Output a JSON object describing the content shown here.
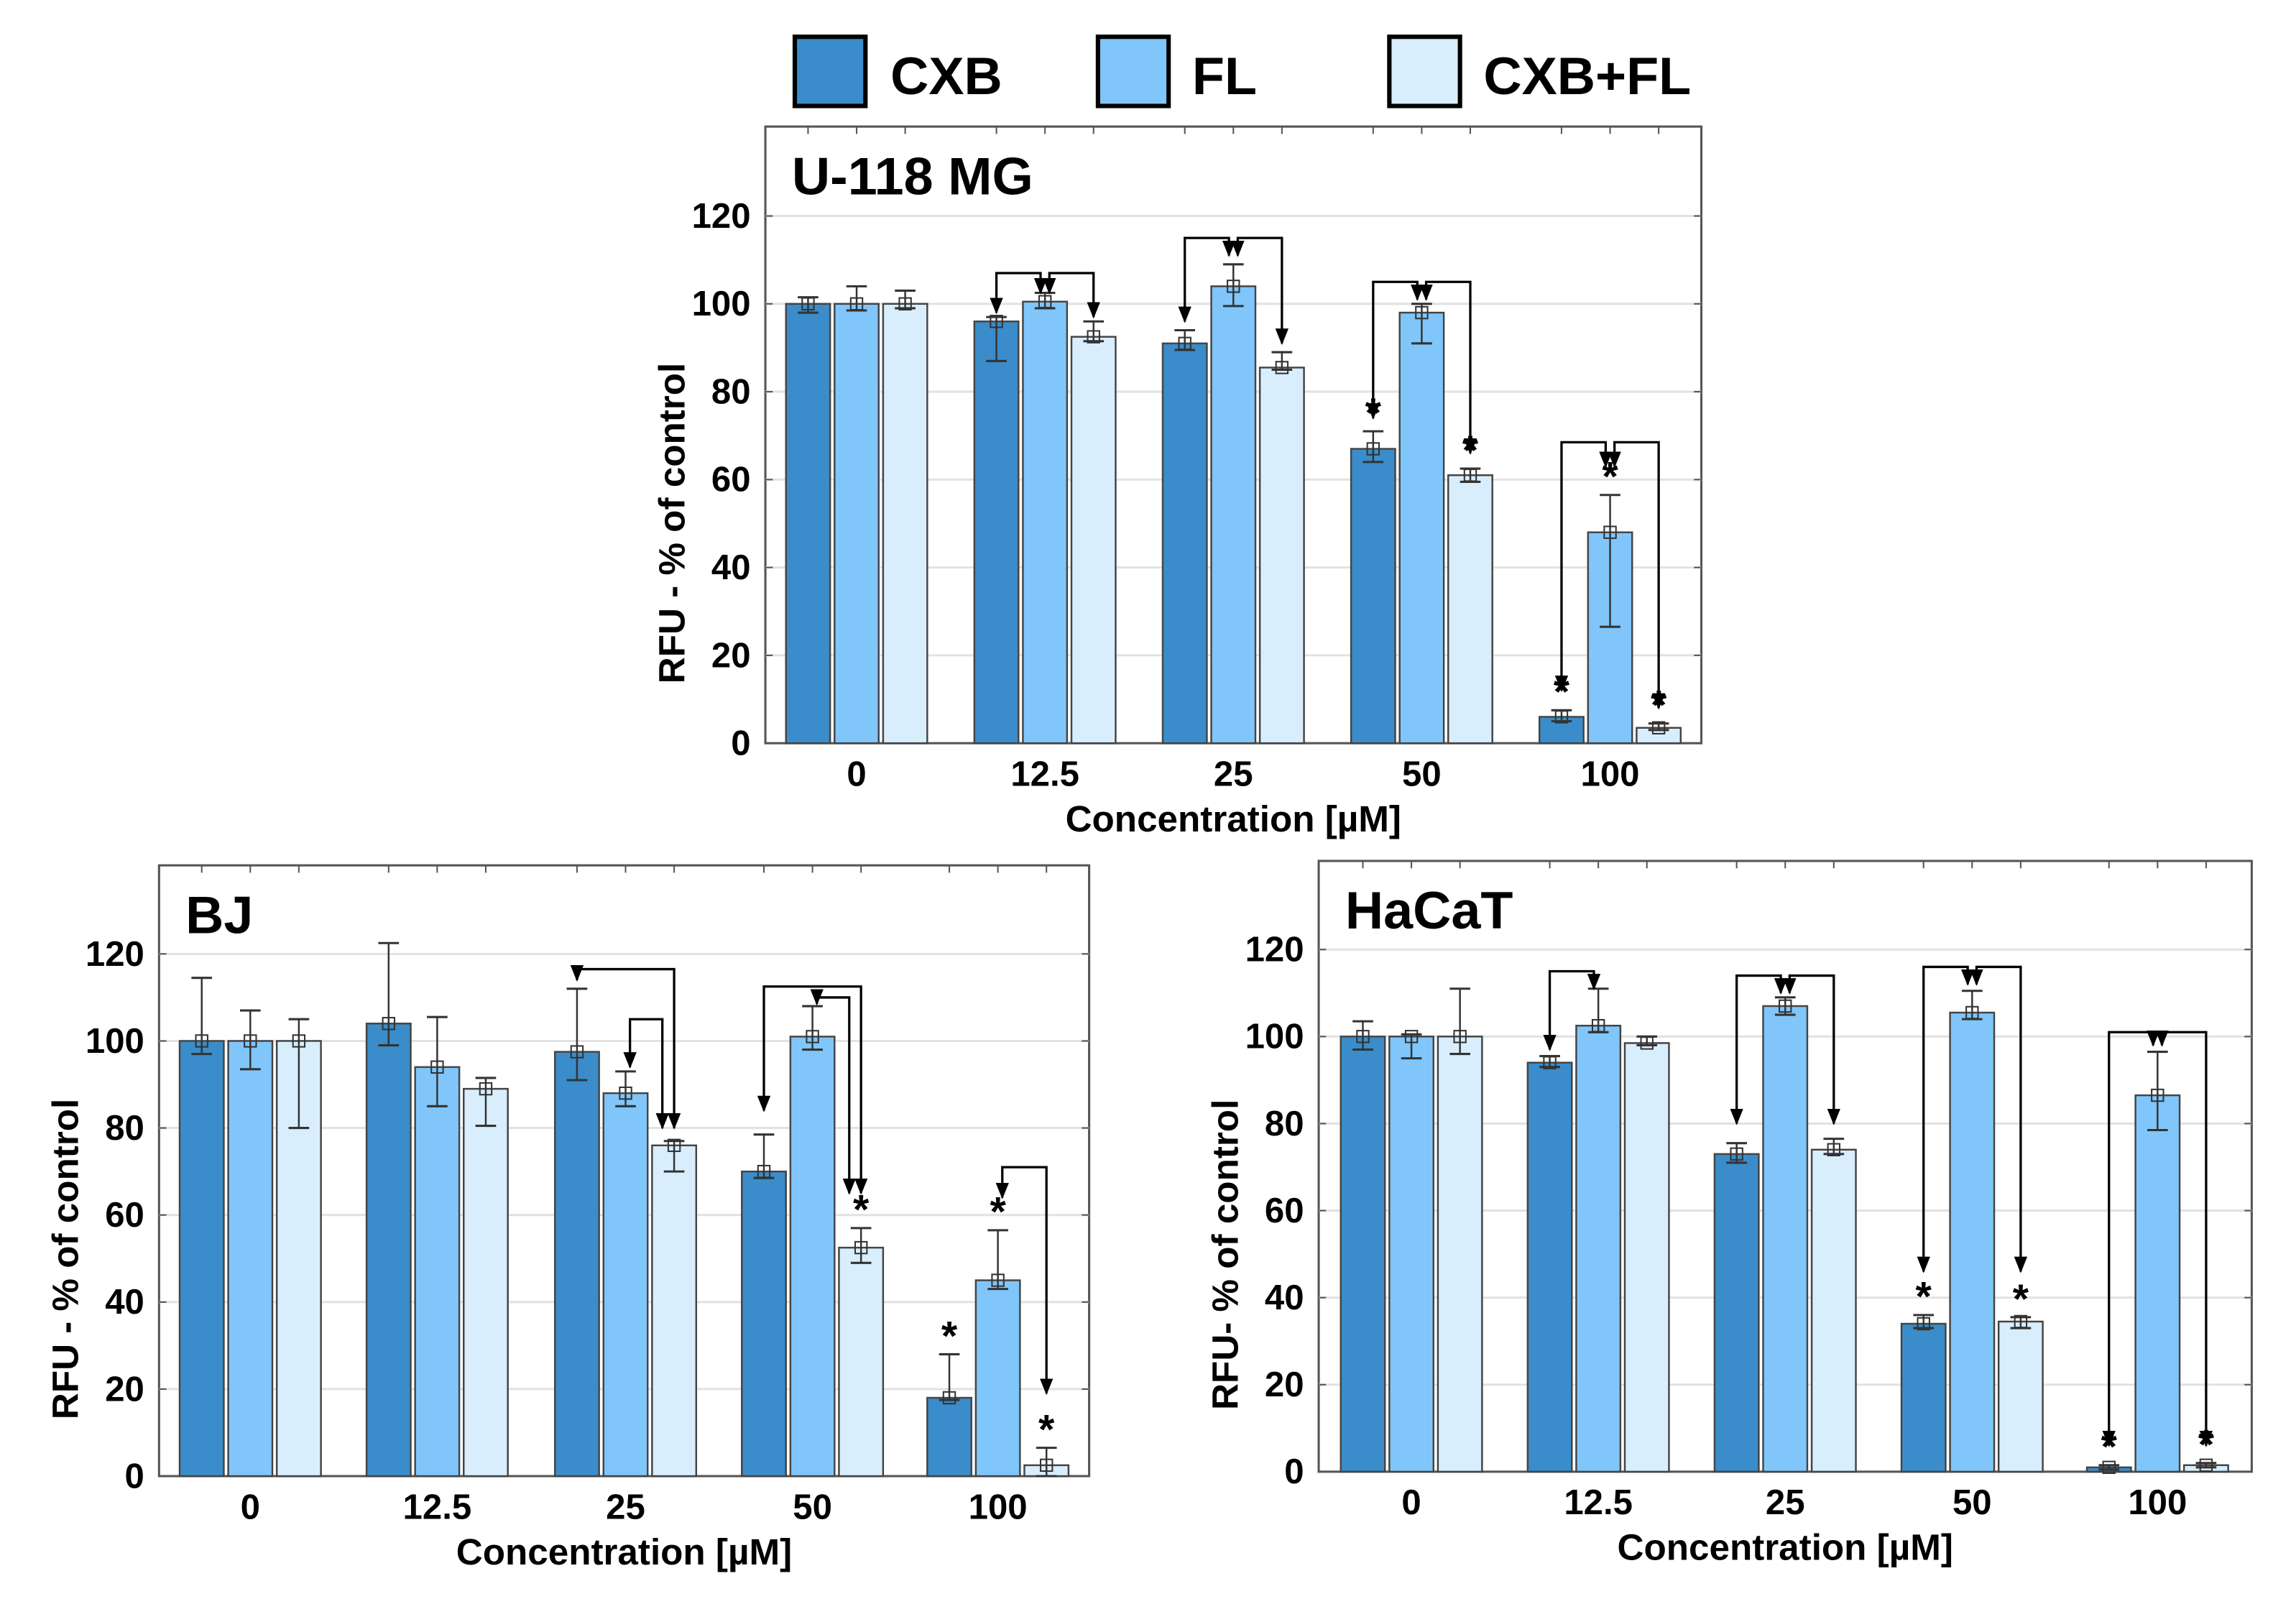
{
  "legend": [
    {
      "label": "CXB",
      "color": "#3a8dca"
    },
    {
      "label": "FL",
      "color": "#80c6fa"
    },
    {
      "label": "CXB+FL",
      "color": "#d9eefd"
    }
  ],
  "chart_data": [
    {
      "type": "bar",
      "title": "U-118 MG",
      "xlabel": "Concentration [µM]",
      "ylabel": "RFU - % of control",
      "ylim": [
        0,
        120
      ],
      "yticks": [
        "0",
        "20",
        "40",
        "60",
        "80",
        "100",
        "120"
      ],
      "grid": true,
      "categories": [
        "0",
        "12.5",
        "25",
        "50",
        "100"
      ],
      "series": [
        {
          "name": "CXB",
          "values": [
            100,
            96,
            91,
            67,
            6
          ],
          "err_low": [
            98,
            87,
            89.5,
            64,
            5
          ],
          "err_high": [
            101.5,
            97,
            94,
            71,
            7.5
          ],
          "significant": [
            false,
            false,
            false,
            true,
            true
          ]
        },
        {
          "name": "FL",
          "values": [
            100,
            100.5,
            104,
            98,
            48
          ],
          "err_low": [
            98.5,
            99,
            99.5,
            91,
            26.5
          ],
          "err_high": [
            104,
            102.5,
            109,
            100,
            56.5
          ],
          "significant": [
            false,
            false,
            false,
            false,
            true
          ]
        },
        {
          "name": "CXB+FL",
          "values": [
            100,
            92.5,
            85.5,
            61,
            3.5
          ],
          "err_low": [
            99,
            91.5,
            85,
            59.5,
            3
          ],
          "err_high": [
            103,
            96,
            89,
            62.5,
            4.5
          ],
          "significant": [
            false,
            false,
            false,
            true,
            true
          ]
        }
      ],
      "comparisons": [
        {
          "category": "12.5",
          "from": "CXB",
          "to": "FL",
          "top": 107,
          "tip_from": 98,
          "tip_to": 102.5
        },
        {
          "category": "12.5",
          "from": "FL",
          "to": "CXB+FL",
          "top": 107,
          "tip_from": 102.5,
          "tip_to": 97
        },
        {
          "category": "25",
          "from": "CXB",
          "to": "FL",
          "top": 115,
          "tip_from": 96,
          "tip_to": 111
        },
        {
          "category": "25",
          "from": "FL",
          "to": "CXB+FL",
          "top": 115,
          "tip_from": 111,
          "tip_to": 91
        },
        {
          "category": "50",
          "from": "CXB",
          "to": "FL",
          "top": 105,
          "tip_from": 74,
          "tip_to": 101
        },
        {
          "category": "50",
          "from": "FL",
          "to": "CXB+FL",
          "top": 105,
          "tip_from": 101,
          "tip_to": 66
        },
        {
          "category": "100",
          "from": "CXB",
          "to": "FL",
          "top": 68.5,
          "tip_from": 12,
          "tip_to": 63
        },
        {
          "category": "100",
          "from": "FL",
          "to": "CXB+FL",
          "top": 68.5,
          "tip_from": 63,
          "tip_to": 8
        }
      ]
    },
    {
      "type": "bar",
      "title": "BJ",
      "xlabel": "Concentration [µM]",
      "ylabel": "RFU - % of control",
      "ylim": [
        0,
        120
      ],
      "yticks": [
        "0",
        "20",
        "40",
        "60",
        "80",
        "100",
        "120"
      ],
      "grid": true,
      "categories": [
        "0",
        "12.5",
        "25",
        "50",
        "100"
      ],
      "series": [
        {
          "name": "CXB",
          "values": [
            100,
            104,
            97.5,
            70,
            18
          ],
          "err_low": [
            97,
            99,
            91,
            68.5,
            17.5
          ],
          "err_high": [
            114.5,
            122.5,
            112,
            78.5,
            28
          ],
          "significant": [
            false,
            false,
            false,
            false,
            true
          ]
        },
        {
          "name": "FL",
          "values": [
            100,
            94,
            88,
            101,
            45
          ],
          "err_low": [
            93.5,
            85,
            85,
            98,
            43
          ],
          "err_high": [
            107,
            105.5,
            93,
            108,
            56.5
          ],
          "significant": [
            false,
            false,
            false,
            false,
            true
          ]
        },
        {
          "name": "CXB+FL",
          "values": [
            100,
            89,
            76,
            52.5,
            2.5
          ],
          "err_low": [
            80,
            80.5,
            70,
            49,
            0
          ],
          "err_high": [
            105,
            91.5,
            77,
            57,
            6.5
          ],
          "significant": [
            false,
            false,
            false,
            true,
            true
          ]
        }
      ],
      "comparisons": [
        {
          "category": "25",
          "from": "CXB",
          "to": "CXB+FL",
          "top": 116.5,
          "tip_from": 114,
          "tip_to": 80,
          "arrow_from": true
        },
        {
          "category": "25",
          "from": "FL",
          "to": "CXB+FL",
          "top": 105,
          "tip_from": 94,
          "tip_to": 80,
          "arrow_from": true,
          "inner": true
        },
        {
          "category": "50",
          "from": "CXB",
          "to": "CXB+FL",
          "top": 112.5,
          "tip_from": 84,
          "tip_to": 65,
          "arrow_from": true
        },
        {
          "category": "50",
          "from": "FL",
          "to": "CXB+FL",
          "top": 110,
          "tip_from": 108.5,
          "tip_to": 65,
          "arrow_from": true,
          "inner": true
        },
        {
          "category": "100",
          "from": "FL",
          "to": "CXB+FL",
          "top": 71,
          "tip_from": 64,
          "tip_to": 19,
          "arrow_from": true
        }
      ]
    },
    {
      "type": "bar",
      "title": "HaCaT",
      "xlabel": "Concentration [µM]",
      "ylabel": "RFU- % of control",
      "ylim": [
        0,
        120
      ],
      "yticks": [
        "0",
        "20",
        "40",
        "60",
        "80",
        "100",
        "120"
      ],
      "grid": true,
      "categories": [
        "0",
        "12.5",
        "25",
        "50",
        "100"
      ],
      "series": [
        {
          "name": "CXB",
          "values": [
            100,
            94,
            73,
            34,
            1
          ],
          "err_low": [
            97,
            93,
            71,
            33,
            0.5
          ],
          "err_high": [
            103.5,
            95.5,
            75.5,
            36,
            1.5
          ],
          "significant": [
            false,
            false,
            false,
            true,
            true
          ]
        },
        {
          "name": "FL",
          "values": [
            100,
            102.5,
            107,
            105.5,
            86.5
          ],
          "err_low": [
            95,
            101,
            105,
            104,
            78.5
          ],
          "err_high": [
            100.5,
            111,
            109,
            110.5,
            96.5
          ],
          "significant": [
            false,
            false,
            false,
            false,
            false
          ]
        },
        {
          "name": "CXB+FL",
          "values": [
            100,
            98.5,
            74,
            34.5,
            1.5
          ],
          "err_low": [
            96,
            98,
            73,
            33,
            1
          ],
          "err_high": [
            111,
            100,
            76.5,
            35.5,
            2
          ],
          "significant": [
            false,
            false,
            false,
            true,
            true
          ]
        }
      ],
      "comparisons": [
        {
          "category": "12.5",
          "from": "CXB",
          "to": "FL",
          "top": 115,
          "tip_from": 97,
          "tip_to": 111
        },
        {
          "category": "25",
          "from": "CXB",
          "to": "FL",
          "top": 114,
          "tip_from": 80,
          "tip_to": 110
        },
        {
          "category": "25",
          "from": "FL",
          "to": "CXB+FL",
          "top": 114,
          "tip_from": 110,
          "tip_to": 80
        },
        {
          "category": "50",
          "from": "CXB",
          "to": "FL",
          "top": 116,
          "tip_from": 46,
          "tip_to": 112
        },
        {
          "category": "50",
          "from": "FL",
          "to": "CXB+FL",
          "top": 116,
          "tip_from": 112,
          "tip_to": 46
        },
        {
          "category": "100",
          "from": "CXB",
          "to": "FL",
          "top": 101,
          "tip_from": 6,
          "tip_to": 98
        },
        {
          "category": "100",
          "from": "FL",
          "to": "CXB+FL",
          "top": 101,
          "tip_from": 98,
          "tip_to": 6
        }
      ]
    }
  ],
  "significance_marker": "*"
}
